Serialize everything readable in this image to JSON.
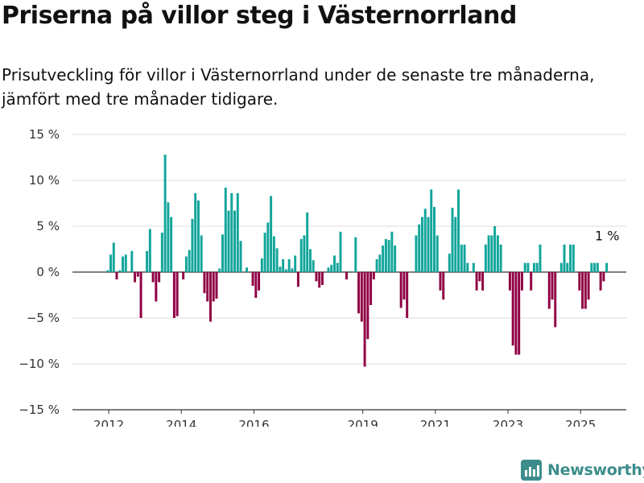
{
  "title": "Priserna på villor steg i Västernorrland",
  "subtitle": "Prisutveckling för villor i Västernorrland under de senaste tre månaderna, jämfört med tre månader tidigare.",
  "brand": "Newsworthy",
  "colors": {
    "positive": "#12a59b",
    "negative": "#8f0044",
    "grid": "#dddddd",
    "axis": "#333333",
    "brand": "#3d8d8c"
  },
  "chart_data": {
    "type": "bar",
    "x_range": [
      2011.0,
      2026.26
    ],
    "ylim": [
      -15,
      15
    ],
    "y_ticks": [
      15,
      10,
      5,
      0,
      -5,
      -10,
      -15
    ],
    "y_tick_labels": [
      "15 %",
      "10 %",
      "5 %",
      "0 %",
      "−5 %",
      "−10 %",
      "−15 %"
    ],
    "x_ticks": [
      2012,
      2014,
      2016,
      2019,
      2021,
      2023,
      2025
    ],
    "x_tick_labels": [
      "2012",
      "2014",
      "2016",
      "2019",
      "2021",
      "2023",
      "2025"
    ],
    "start": 2011.97,
    "step": 0.08333,
    "values": [
      0.2,
      1.9,
      3.2,
      -0.8,
      0.2,
      1.7,
      1.9,
      0,
      2.3,
      -1.1,
      -0.5,
      -5,
      0,
      2.3,
      4.7,
      -1.1,
      -3.2,
      -1.1,
      4.3,
      12.8,
      7.6,
      6,
      -5,
      -4.8,
      0,
      -0.8,
      1.7,
      2.4,
      5.8,
      8.6,
      7.8,
      4,
      -2.3,
      -3.2,
      -5.4,
      -3.2,
      -2.9,
      0.4,
      4.1,
      9.2,
      6.7,
      8.6,
      6.7,
      8.6,
      3.4,
      0,
      0.5,
      0,
      -1.5,
      -2.8,
      -2,
      1.5,
      4.3,
      5.4,
      8.3,
      3.9,
      2.6,
      0.6,
      1.4,
      0.3,
      1.4,
      0.4,
      1.8,
      -1.6,
      3.6,
      4,
      6.5,
      2.5,
      1.3,
      -1,
      -1.7,
      -1.4,
      0,
      0.5,
      0.8,
      1.8,
      1,
      4.4,
      0,
      -0.8,
      0.1,
      0,
      3.8,
      -4.5,
      -5.4,
      -10.3,
      -7.3,
      -3.6,
      -0.8,
      1.4,
      1.9,
      2.9,
      3.6,
      3.5,
      4.4,
      2.9,
      0,
      -3.9,
      -3,
      -5,
      0,
      0,
      4,
      5.2,
      6,
      6.9,
      6,
      9,
      7.1,
      4,
      -2,
      -3,
      0,
      2,
      7,
      6,
      9,
      3,
      3,
      1,
      0,
      1,
      -2,
      -1,
      -2,
      3,
      4,
      4,
      5,
      4,
      3,
      0,
      0,
      -2,
      -8,
      -9,
      -9,
      -2,
      1,
      1,
      -2,
      1,
      1,
      3,
      0,
      0,
      -4,
      -3,
      -6,
      0,
      1,
      3,
      1,
      3,
      3,
      0,
      -2,
      -4,
      -4,
      -3,
      1,
      1,
      1,
      -2,
      -1,
      1
    ],
    "annotation": {
      "text": "1 %",
      "x": 2025.4,
      "y": 1
    }
  }
}
